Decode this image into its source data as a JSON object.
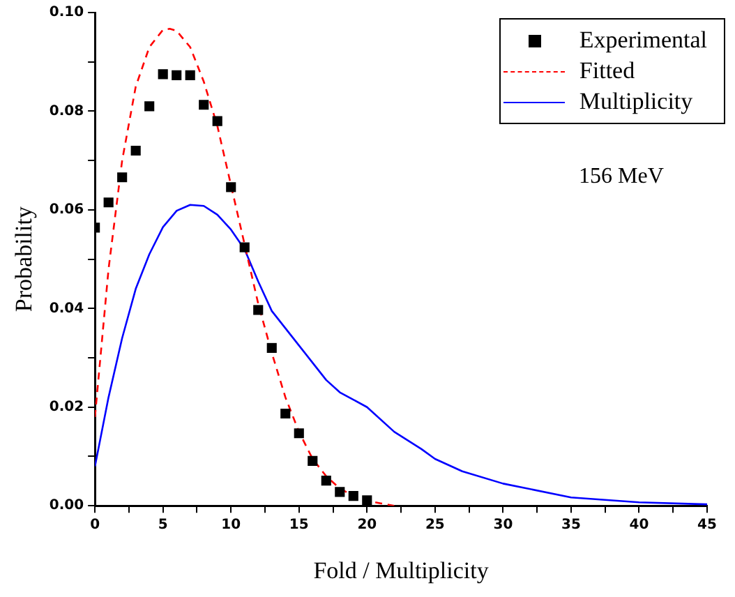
{
  "chart_data": {
    "type": "line",
    "xlabel": "Fold / Multiplicity",
    "ylabel": "Probability",
    "xlim": [
      0,
      45
    ],
    "ylim": [
      0,
      0.1
    ],
    "xticks": [
      0,
      {
        "value": 2.5,
        "label": null
      },
      5,
      {
        "value": 7.5,
        "label": null
      },
      10,
      {
        "value": 12.5,
        "label": null
      },
      15,
      {
        "value": 17.5,
        "label": null
      },
      20,
      {
        "value": 22.5,
        "label": null
      },
      25,
      {
        "value": 27.5,
        "label": null
      },
      30,
      {
        "value": 32.5,
        "label": null
      },
      35,
      {
        "value": 37.5,
        "label": null
      },
      40,
      {
        "value": 42.5,
        "label": null
      },
      45
    ],
    "yticks": [
      {
        "value": 0,
        "label": "0.00"
      },
      {
        "value": 0.01,
        "label": null
      },
      {
        "value": 0.02,
        "label": "0.02"
      },
      {
        "value": 0.03,
        "label": null
      },
      {
        "value": 0.04,
        "label": "0.04"
      },
      {
        "value": 0.05,
        "label": null
      },
      {
        "value": 0.06,
        "label": "0.06"
      },
      {
        "value": 0.07,
        "label": null
      },
      {
        "value": 0.08,
        "label": "0.08"
      },
      {
        "value": 0.09,
        "label": null
      },
      {
        "value": 0.1,
        "label": "0.10"
      }
    ],
    "grid": false,
    "legend": "top right",
    "annotations": [
      "156 MeV"
    ],
    "series": [
      {
        "name": "Experimental",
        "type": "scatter",
        "marker": "square",
        "color": "#000000",
        "x": [
          0,
          1,
          2,
          3,
          4,
          5,
          6,
          7,
          8,
          9,
          10,
          11,
          12,
          13,
          14,
          15,
          16,
          17,
          18,
          19,
          20
        ],
        "values": [
          0.0564,
          0.0615,
          0.0666,
          0.072,
          0.081,
          0.0875,
          0.0873,
          0.0873,
          0.0813,
          0.078,
          0.0646,
          0.0524,
          0.0397,
          0.032,
          0.0187,
          0.0147,
          0.0091,
          0.0051,
          0.0028,
          0.002,
          0.0011
        ]
      },
      {
        "name": "Fitted",
        "type": "line",
        "marker": "none",
        "line_style": "dashed",
        "color": "#ff0000",
        "x": [
          0,
          1,
          2,
          3,
          4,
          5,
          5.5,
          6,
          7,
          8,
          9,
          10,
          11,
          12,
          13,
          14,
          15,
          16,
          17,
          18,
          19,
          20,
          21,
          22
        ],
        "values": [
          0.018,
          0.048,
          0.07,
          0.085,
          0.093,
          0.0965,
          0.0967,
          0.0963,
          0.093,
          0.086,
          0.077,
          0.065,
          0.053,
          0.041,
          0.031,
          0.022,
          0.015,
          0.0095,
          0.006,
          0.0035,
          0.002,
          0.001,
          0.0005,
          0
        ]
      },
      {
        "name": "Multiplicity",
        "type": "line",
        "marker": "none",
        "line_style": "solid",
        "color": "#0000ff",
        "x": [
          0,
          1,
          2,
          3,
          4,
          5,
          6,
          7,
          8,
          9,
          10,
          11,
          12,
          13,
          14,
          15,
          16,
          17,
          18,
          19,
          20,
          22,
          24,
          25,
          27,
          30,
          35,
          40,
          45
        ],
        "values": [
          0.008,
          0.022,
          0.034,
          0.044,
          0.051,
          0.0565,
          0.0598,
          0.061,
          0.0608,
          0.059,
          0.056,
          0.052,
          0.0455,
          0.0395,
          0.036,
          0.0325,
          0.029,
          0.0255,
          0.023,
          0.0215,
          0.02,
          0.015,
          0.0115,
          0.0095,
          0.007,
          0.0045,
          0.0017,
          0.0007,
          0.0003
        ]
      }
    ]
  }
}
